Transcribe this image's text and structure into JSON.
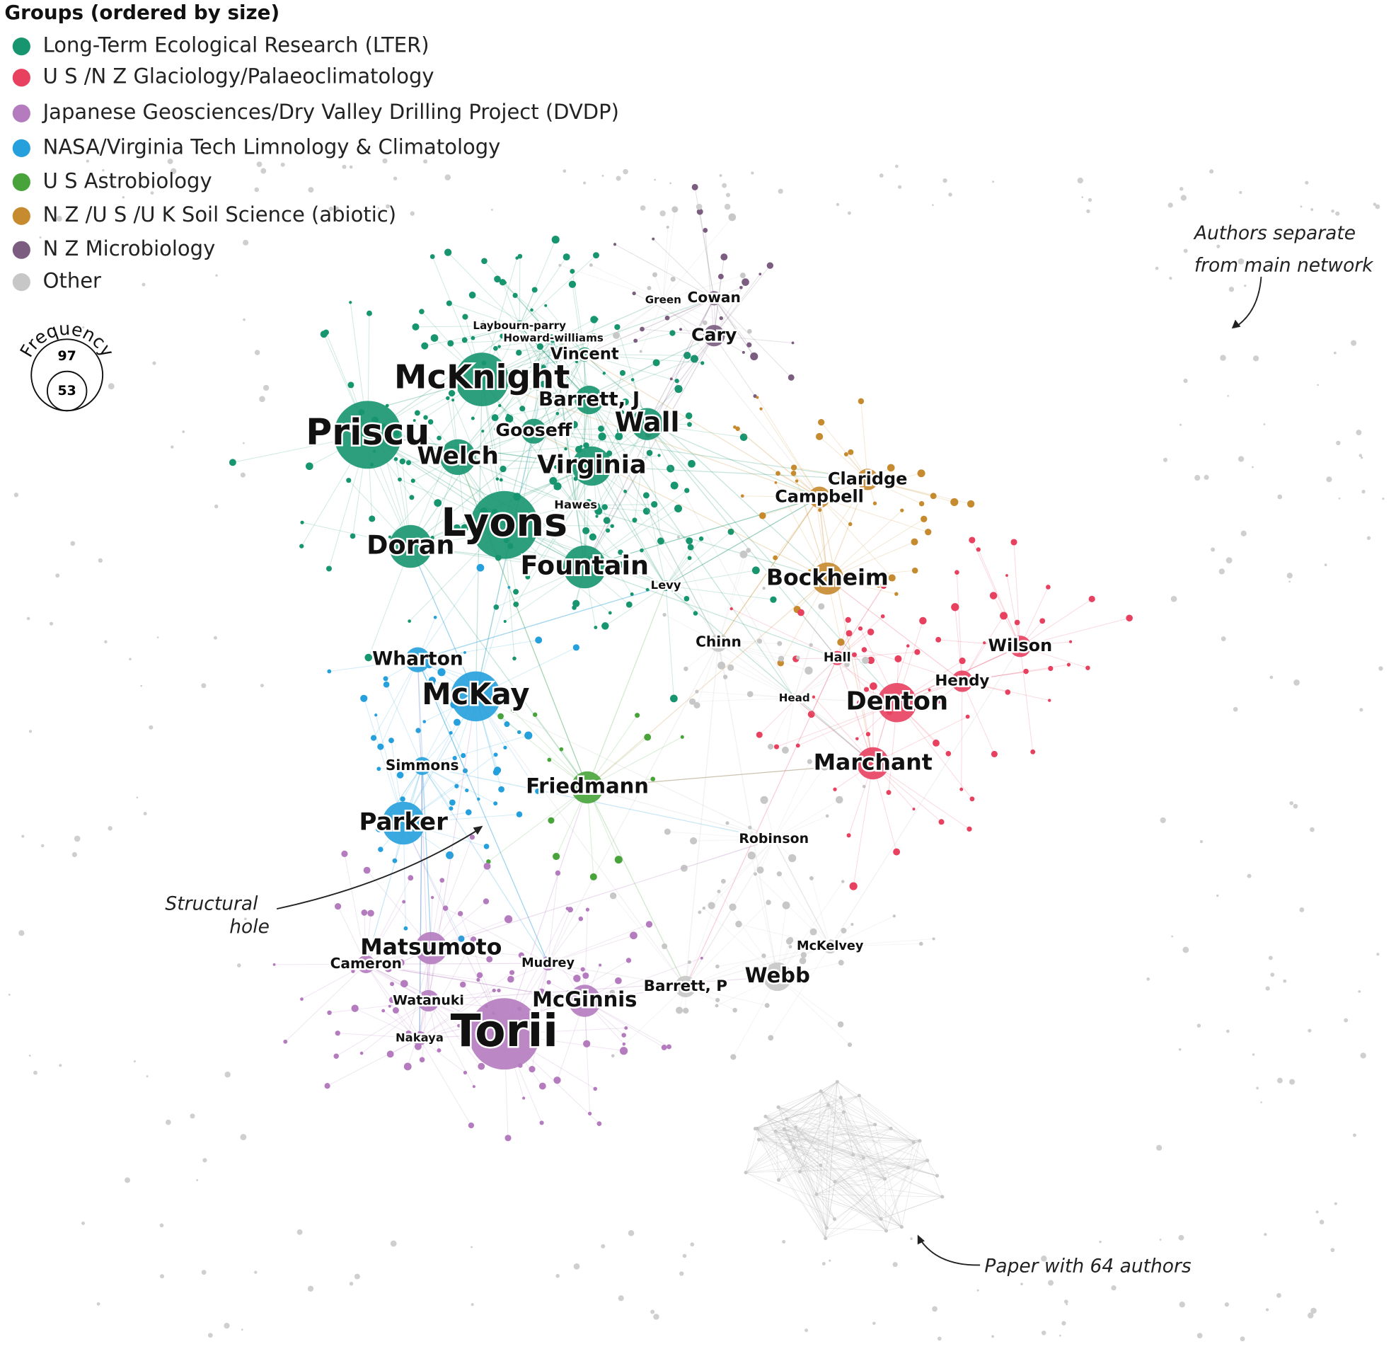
{
  "legend": {
    "title": "Groups (ordered by size)",
    "items": [
      {
        "label": "Long-Term Ecological Research (LTER)",
        "color": "#17956f"
      },
      {
        "label": "U S /N Z  Glaciology/Palaeoclimatology",
        "color": "#e8405f"
      },
      {
        "label": "Japanese Geosciences/Dry Valley Drilling Project (DVDP)",
        "color": "#b47bbf"
      },
      {
        "label": "NASA/Virginia Tech Limnology & Climatology",
        "color": "#25a0dc"
      },
      {
        "label": "U S  Astrobiology",
        "color": "#48a43a"
      },
      {
        "label": "N Z /U S /U K  Soil Science (abiotic)",
        "color": "#c68a2f"
      },
      {
        "label": "N Z  Microbiology",
        "color": "#7a5d7f"
      },
      {
        "label": "Other",
        "color": "#c7c7c7"
      }
    ]
  },
  "size_legend": {
    "title": "Frequency",
    "values": [
      97,
      53
    ]
  },
  "nodes": [
    "Priscu",
    "McKnight",
    "Lyons",
    "Welch",
    "Gooseff",
    "Virginia",
    "Wall",
    "Barrett, J",
    "Vincent",
    "Laybourn-parry",
    "Howard-williams",
    "Doran",
    "Fountain",
    "Hawes",
    "Levy",
    "Green",
    "Cowan",
    "Cary",
    "Claridge",
    "Campbell",
    "Bockheim",
    "Wilson",
    "Hendy",
    "Denton",
    "Hall",
    "Head",
    "Chinn",
    "Marchant",
    "Wharton",
    "McKay",
    "Simmons",
    "Parker",
    "Friedmann",
    "Robinson",
    "McKelvey",
    "Webb",
    "Barrett, P",
    "Matsumoto",
    "Cameron",
    "Mudrey",
    "Watanuki",
    "McGinnis",
    "Nakaya",
    "Torii"
  ],
  "annotations": [
    "Authors separate",
    "from main network",
    "Structural",
    "hole",
    "Paper with 64 authors"
  ]
}
